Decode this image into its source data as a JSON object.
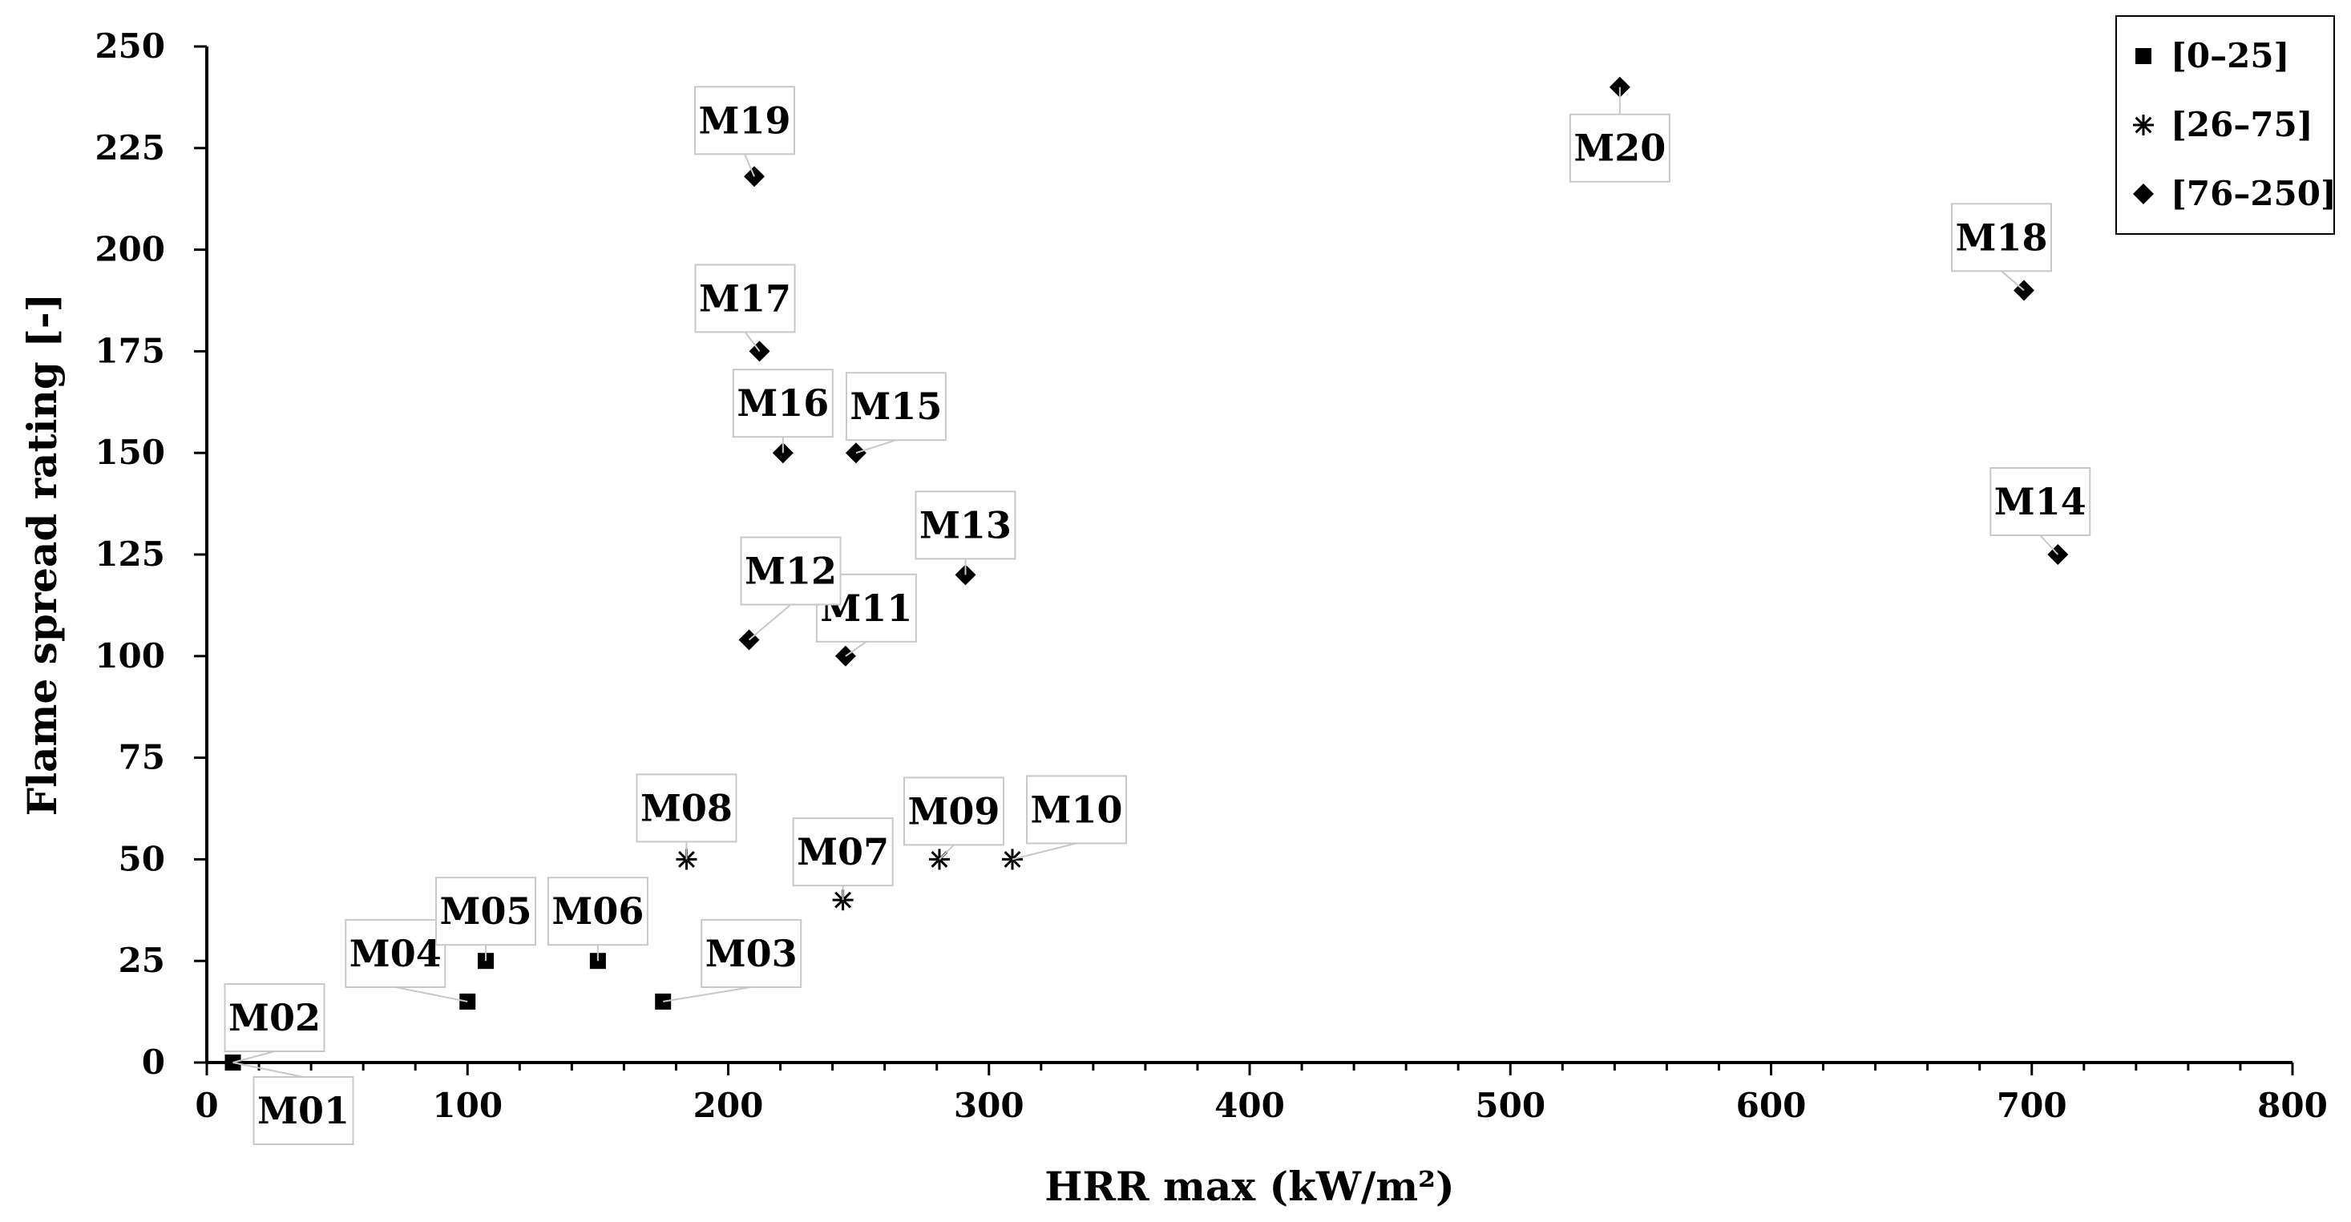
{
  "chart_data": {
    "type": "scatter",
    "title": "",
    "xlabel": "HRR max (kW/m²)",
    "ylabel": "Flame spread rating [-]",
    "xlim": [
      0,
      800
    ],
    "ylim": [
      0,
      250
    ],
    "xticks": [
      0,
      100,
      200,
      300,
      400,
      500,
      600,
      700,
      800
    ],
    "yticks": [
      0,
      25,
      50,
      75,
      100,
      125,
      150,
      175,
      200,
      225,
      250
    ],
    "grid": false,
    "legend_position": "top-right",
    "series": [
      {
        "name": "[0–25]",
        "marker": "square",
        "points": [
          {
            "label": "M01",
            "x": 10,
            "y": 0
          },
          {
            "label": "M02",
            "x": 10,
            "y": 0
          },
          {
            "label": "M03",
            "x": 175,
            "y": 15
          },
          {
            "label": "M04",
            "x": 100,
            "y": 15
          },
          {
            "label": "M05",
            "x": 107,
            "y": 25
          },
          {
            "label": "M06",
            "x": 150,
            "y": 25
          }
        ]
      },
      {
        "name": "[26–75]",
        "marker": "asterisk",
        "points": [
          {
            "label": "M07",
            "x": 244,
            "y": 40
          },
          {
            "label": "M08",
            "x": 184,
            "y": 50
          },
          {
            "label": "M09",
            "x": 281,
            "y": 50
          },
          {
            "label": "M10",
            "x": 309,
            "y": 50
          }
        ]
      },
      {
        "name": "[76–250]",
        "marker": "diamond",
        "points": [
          {
            "label": "M11",
            "x": 245,
            "y": 100
          },
          {
            "label": "M12",
            "x": 208,
            "y": 104
          },
          {
            "label": "M13",
            "x": 291,
            "y": 120
          },
          {
            "label": "M14",
            "x": 710,
            "y": 125
          },
          {
            "label": "M15",
            "x": 249,
            "y": 150
          },
          {
            "label": "M16",
            "x": 221,
            "y": 150
          },
          {
            "label": "M17",
            "x": 212,
            "y": 175
          },
          {
            "label": "M18",
            "x": 697,
            "y": 190
          },
          {
            "label": "M19",
            "x": 210,
            "y": 218
          },
          {
            "label": "M20",
            "x": 542,
            "y": 240
          }
        ]
      }
    ]
  }
}
